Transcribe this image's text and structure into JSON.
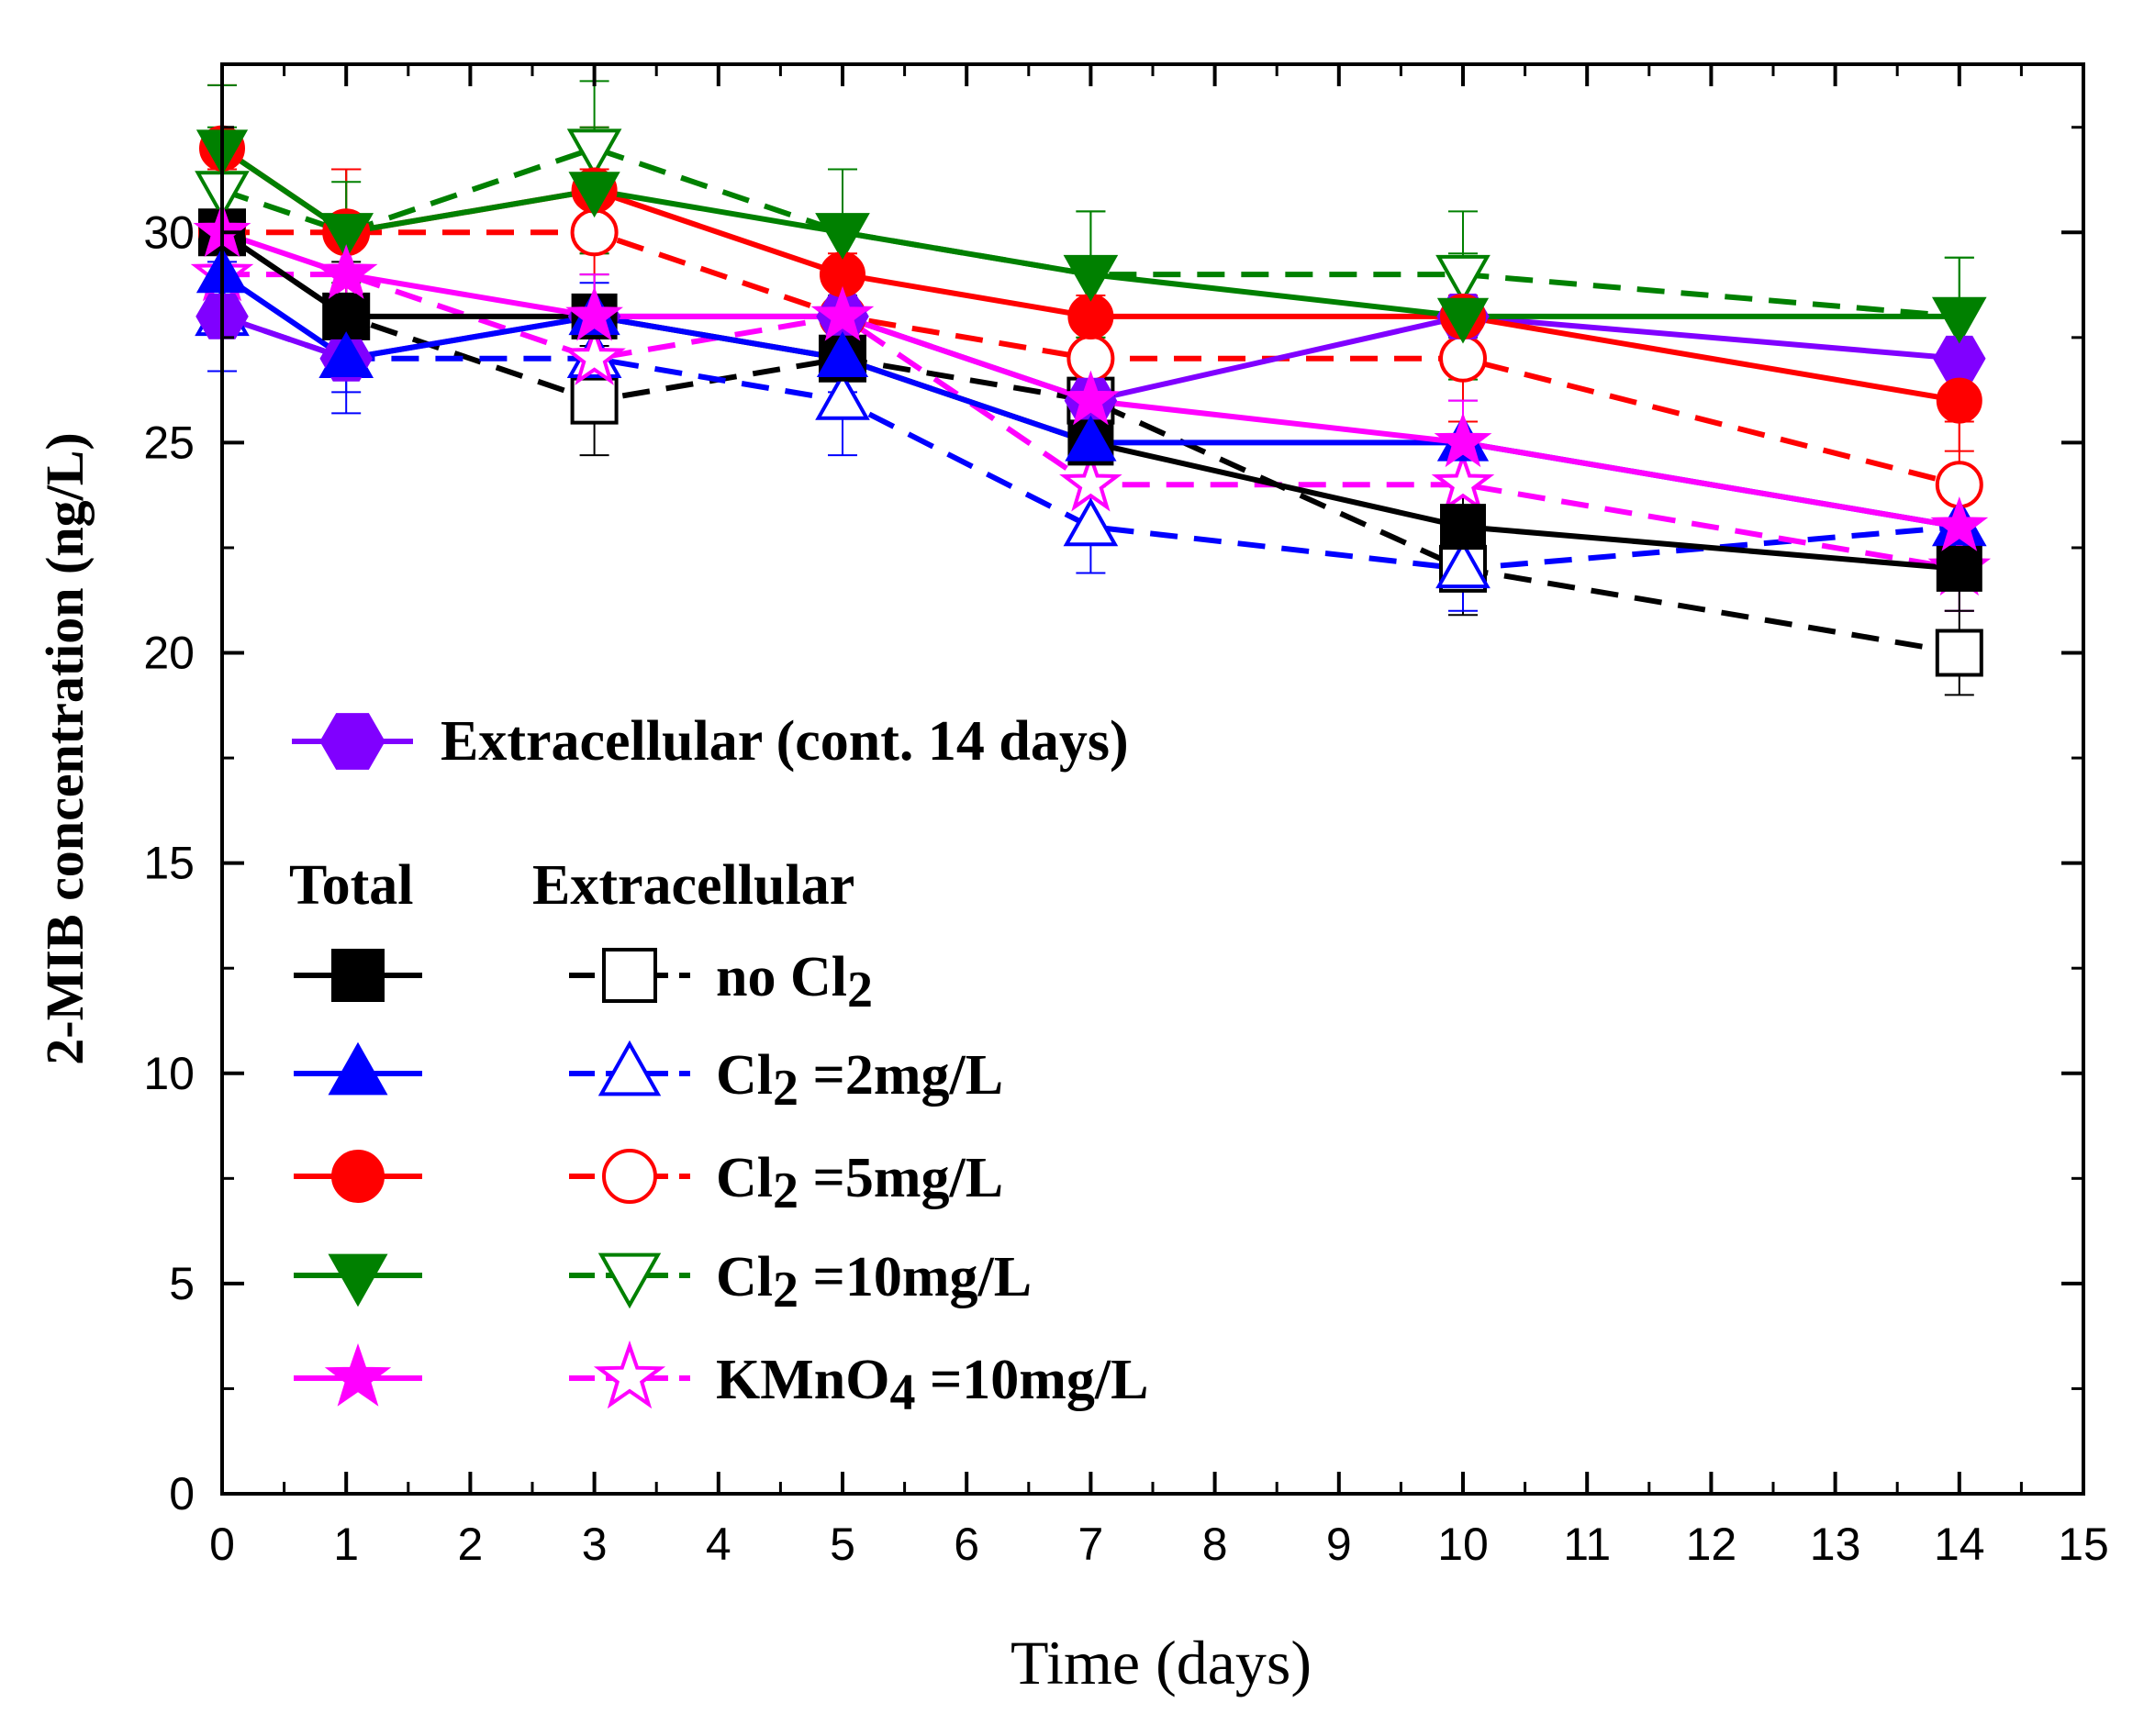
{
  "chart_data": {
    "type": "line",
    "xlabel": "Time (days)",
    "ylabel": "2-MIB concentration (ng/L)",
    "xlim": [
      0,
      15
    ],
    "ylim": [
      0,
      34
    ],
    "xticks": [
      0,
      1,
      2,
      3,
      4,
      5,
      6,
      7,
      8,
      9,
      10,
      11,
      12,
      13,
      14,
      15
    ],
    "yticks": [
      0,
      5,
      10,
      15,
      20,
      25,
      30
    ],
    "x": [
      0,
      1,
      3,
      5,
      7,
      10,
      14
    ],
    "legend_headers": {
      "total": "Total",
      "extracellular": "Extracellular"
    },
    "legend_rows": [
      {
        "text": "no Cl",
        "sub": "2",
        "suffix": ""
      },
      {
        "text": "Cl",
        "sub": "2",
        "suffix": " =2mg/L"
      },
      {
        "text": "Cl",
        "sub": "2",
        "suffix": " =5mg/L"
      },
      {
        "text": "Cl",
        "sub": "2",
        "suffix": " =10mg/L"
      },
      {
        "text": "KMnO",
        "sub": "4",
        "suffix": " =10mg/L"
      }
    ],
    "series": [
      {
        "name": "Extracellular (cont. 14 days)",
        "color": "#8000ff",
        "marker": "hexagon",
        "filled": true,
        "dashed": false,
        "values": [
          28,
          27,
          28,
          28,
          26,
          28,
          27
        ],
        "err": [
          0,
          0,
          0,
          0,
          0,
          0,
          0
        ]
      },
      {
        "name": "Total no Cl2",
        "color": "#000000",
        "marker": "square",
        "filled": true,
        "dashed": false,
        "values": [
          30,
          28,
          28,
          27,
          25,
          23,
          22
        ],
        "err": [
          1.0,
          1.0,
          1.0,
          1.0,
          1.0,
          1.2,
          1.0
        ]
      },
      {
        "name": "Total Cl2 =2mg/L",
        "color": "#0000ff",
        "marker": "triangle-up",
        "filled": true,
        "dashed": false,
        "values": [
          29,
          27,
          28,
          27,
          25,
          25,
          23
        ],
        "err": [
          0.8,
          0.8,
          0.8,
          0.8,
          1.0,
          1.0,
          0.8
        ]
      },
      {
        "name": "Total Cl2 =5mg/L",
        "color": "#ff0000",
        "marker": "circle",
        "filled": true,
        "dashed": false,
        "values": [
          32,
          30,
          31,
          29,
          28,
          28,
          26
        ],
        "err": [
          1.5,
          1.5,
          1.5,
          1.2,
          1.2,
          1.2,
          1.2
        ]
      },
      {
        "name": "Total Cl2 =10mg/L",
        "color": "#008000",
        "marker": "triangle-down",
        "filled": true,
        "dashed": false,
        "values": [
          32,
          30,
          31,
          30,
          29,
          28,
          28
        ],
        "err": [
          1.5,
          1.2,
          1.5,
          1.5,
          1.5,
          1.5,
          1.4
        ]
      },
      {
        "name": "Total KMnO4 =10mg/L",
        "color": "#ff00ff",
        "marker": "star",
        "filled": true,
        "dashed": false,
        "values": [
          30,
          29,
          28,
          28,
          26,
          25,
          23
        ],
        "err": [
          1.0,
          1.0,
          1.0,
          1.0,
          1.0,
          1.0,
          1.0
        ]
      },
      {
        "name": "Extracellular no Cl2",
        "color": "#000000",
        "marker": "square",
        "filled": false,
        "dashed": true,
        "values": [
          30,
          28,
          26,
          27,
          26,
          22,
          20
        ],
        "err": [
          1.3,
          1.3,
          1.3,
          1.3,
          1.3,
          1.1,
          1.0
        ]
      },
      {
        "name": "Extracellular Cl2 =2mg/L",
        "color": "#0000ff",
        "marker": "triangle-up",
        "filled": false,
        "dashed": true,
        "values": [
          28,
          27,
          27,
          26,
          23,
          22,
          23
        ],
        "err": [
          1.3,
          1.3,
          1.3,
          1.3,
          1.1,
          1.0,
          1.1
        ]
      },
      {
        "name": "Extracellular Cl2 =5mg/L",
        "color": "#ff0000",
        "marker": "circle",
        "filled": false,
        "dashed": true,
        "values": [
          30,
          30,
          30,
          28,
          27,
          27,
          24
        ],
        "err": [
          1.5,
          1.5,
          1.5,
          1.5,
          1.5,
          1.5,
          1.5
        ]
      },
      {
        "name": "Extracellular Cl2 =10mg/L",
        "color": "#008000",
        "marker": "triangle-down",
        "filled": false,
        "dashed": true,
        "values": [
          31,
          30,
          32,
          30,
          29,
          29,
          28
        ],
        "err": [
          1.5,
          1.5,
          1.6,
          1.5,
          1.5,
          1.5,
          1.4
        ]
      },
      {
        "name": "Extracellular KMnO4 =10mg/L",
        "color": "#ff00ff",
        "marker": "star",
        "filled": false,
        "dashed": true,
        "values": [
          29,
          29,
          27,
          28,
          24,
          24,
          22
        ],
        "err": [
          1.0,
          1.0,
          1.0,
          1.0,
          1.0,
          1.0,
          1.0
        ]
      }
    ]
  }
}
